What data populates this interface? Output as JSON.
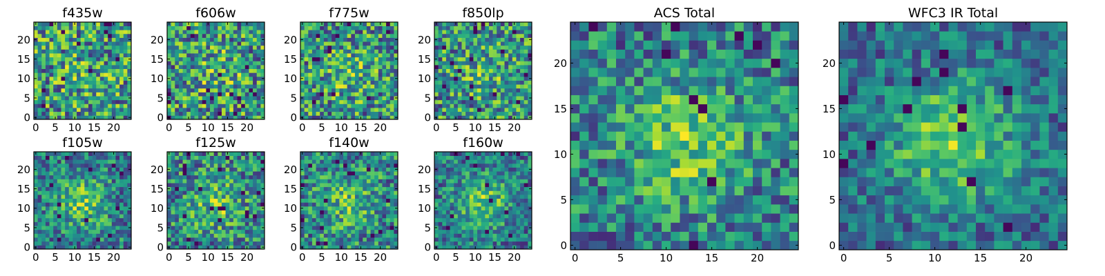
{
  "chart_data": [
    {
      "type": "heatmap",
      "title": "f435w",
      "grid_size": 25,
      "x_ticks": [
        0,
        5,
        10,
        15,
        20
      ],
      "y_ticks": [
        0,
        5,
        10,
        15,
        20
      ],
      "xlim": [
        -0.5,
        24.5
      ],
      "ylim": [
        -0.5,
        24.5
      ],
      "colormap": "viridis",
      "seed": 11,
      "blob_strength": 0.05
    },
    {
      "type": "heatmap",
      "title": "f606w",
      "grid_size": 25,
      "x_ticks": [
        0,
        5,
        10,
        15,
        20
      ],
      "y_ticks": [
        0,
        5,
        10,
        15,
        20
      ],
      "xlim": [
        -0.5,
        24.5
      ],
      "ylim": [
        -0.5,
        24.5
      ],
      "colormap": "viridis",
      "seed": 23,
      "blob_strength": 0.08
    },
    {
      "type": "heatmap",
      "title": "f775w",
      "grid_size": 25,
      "x_ticks": [
        0,
        5,
        10,
        15,
        20
      ],
      "y_ticks": [
        0,
        5,
        10,
        15,
        20
      ],
      "xlim": [
        -0.5,
        24.5
      ],
      "ylim": [
        -0.5,
        24.5
      ],
      "colormap": "viridis",
      "seed": 37,
      "blob_strength": 0.1
    },
    {
      "type": "heatmap",
      "title": "f850lp",
      "grid_size": 25,
      "x_ticks": [
        0,
        5,
        10,
        15,
        20
      ],
      "y_ticks": [
        0,
        5,
        10,
        15,
        20
      ],
      "xlim": [
        -0.5,
        24.5
      ],
      "ylim": [
        -0.5,
        24.5
      ],
      "colormap": "viridis",
      "seed": 41,
      "blob_strength": 0.1
    },
    {
      "type": "heatmap",
      "title": "f105w",
      "grid_size": 25,
      "x_ticks": [
        0,
        5,
        10,
        15,
        20
      ],
      "y_ticks": [
        0,
        5,
        10,
        15,
        20
      ],
      "xlim": [
        -0.5,
        24.5
      ],
      "ylim": [
        -0.5,
        24.5
      ],
      "colormap": "viridis",
      "seed": 53,
      "blob_strength": 0.3
    },
    {
      "type": "heatmap",
      "title": "f125w",
      "grid_size": 25,
      "x_ticks": [
        0,
        5,
        10,
        15,
        20
      ],
      "y_ticks": [
        0,
        5,
        10,
        15,
        20
      ],
      "xlim": [
        -0.5,
        24.5
      ],
      "ylim": [
        -0.5,
        24.5
      ],
      "colormap": "viridis",
      "seed": 67,
      "blob_strength": 0.2
    },
    {
      "type": "heatmap",
      "title": "f140w",
      "grid_size": 25,
      "x_ticks": [
        0,
        5,
        10,
        15,
        20
      ],
      "y_ticks": [
        0,
        5,
        10,
        15,
        20
      ],
      "xlim": [
        -0.5,
        24.5
      ],
      "ylim": [
        -0.5,
        24.5
      ],
      "colormap": "viridis",
      "seed": 71,
      "blob_strength": 0.2
    },
    {
      "type": "heatmap",
      "title": "f160w",
      "grid_size": 25,
      "x_ticks": [
        0,
        5,
        10,
        15,
        20
      ],
      "y_ticks": [
        0,
        5,
        10,
        15,
        20
      ],
      "xlim": [
        -0.5,
        24.5
      ],
      "ylim": [
        -0.5,
        24.5
      ],
      "colormap": "viridis",
      "seed": 83,
      "blob_strength": 0.35
    },
    {
      "type": "heatmap",
      "title": "ACS Total",
      "grid_size": 25,
      "x_ticks": [
        0,
        5,
        10,
        15,
        20
      ],
      "y_ticks": [
        0,
        5,
        10,
        15,
        20
      ],
      "xlim": [
        -0.5,
        24.5
      ],
      "ylim": [
        -0.5,
        24.5
      ],
      "colormap": "viridis",
      "seed": 97,
      "blob_strength": 0.3
    },
    {
      "type": "heatmap",
      "title": "WFC3 IR Total",
      "grid_size": 25,
      "x_ticks": [
        0,
        5,
        10,
        15,
        20
      ],
      "y_ticks": [
        0,
        5,
        10,
        15,
        20
      ],
      "xlim": [
        -0.5,
        24.5
      ],
      "ylim": [
        -0.5,
        24.5
      ],
      "colormap": "viridis",
      "seed": 109,
      "blob_strength": 0.55
    }
  ]
}
